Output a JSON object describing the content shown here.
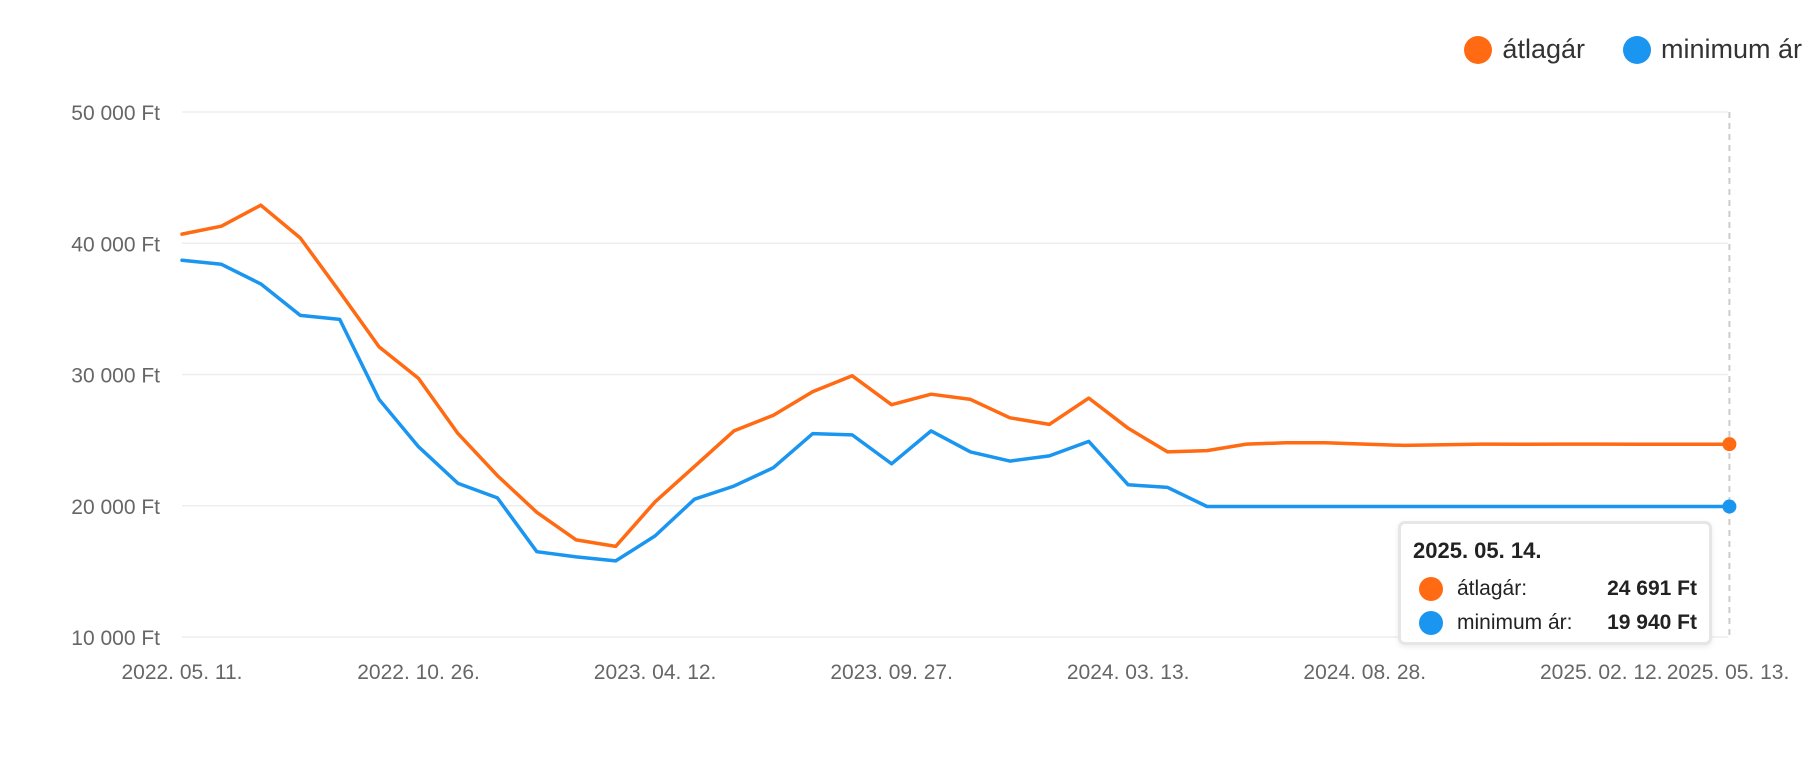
{
  "legend": [
    {
      "label": "átlagár",
      "color": "#ff6a13"
    },
    {
      "label": "minimum ár",
      "color": "#1a96f0"
    }
  ],
  "tooltip": {
    "date": "2025. 05. 14.",
    "rows": [
      {
        "label": "átlagár:",
        "value": "24 691 Ft",
        "color": "#ff6a13"
      },
      {
        "label": "minimum ár:",
        "value": "19 940 Ft",
        "color": "#1a96f0"
      }
    ]
  },
  "chart_data": {
    "type": "line",
    "title": "",
    "xlabel": "",
    "ylabel": "",
    "ylim": [
      10000,
      50000
    ],
    "y_ticks": [
      50000,
      40000,
      30000,
      20000,
      10000
    ],
    "y_tick_labels": [
      "50 000 Ft",
      "40 000 Ft",
      "30 000 Ft",
      "20 000 Ft",
      "10 000 Ft"
    ],
    "x_tick_labels": [
      "2022. 05. 11.",
      "2022. 10. 26.",
      "2023. 04. 12.",
      "2023. 09. 27.",
      "2024. 03. 13.",
      "2024. 08. 28.",
      "2025. 02. 12.",
      "2025. 05. 13."
    ],
    "x_tick_dates": [
      "2022-05-11",
      "2022-10-26",
      "2023-04-12",
      "2023-09-27",
      "2024-03-13",
      "2024-08-28",
      "2025-02-12",
      "2025-05-13"
    ],
    "x": [
      "2022-05-11",
      "2022-06-08",
      "2022-07-06",
      "2022-08-03",
      "2022-08-31",
      "2022-09-28",
      "2022-10-26",
      "2022-11-23",
      "2022-12-21",
      "2023-01-18",
      "2023-02-15",
      "2023-03-15",
      "2023-04-12",
      "2023-05-10",
      "2023-06-07",
      "2023-07-05",
      "2023-08-02",
      "2023-08-30",
      "2023-09-27",
      "2023-10-25",
      "2023-11-22",
      "2023-12-20",
      "2024-01-17",
      "2024-02-14",
      "2024-03-13",
      "2024-04-10",
      "2024-05-08",
      "2024-06-05",
      "2024-07-03",
      "2024-07-31",
      "2024-08-28",
      "2024-09-25",
      "2024-10-23",
      "2024-11-20",
      "2024-12-18",
      "2025-01-15",
      "2025-02-12",
      "2025-03-12",
      "2025-05-14"
    ],
    "series": [
      {
        "name": "átlagár",
        "color": "#ff6a13",
        "values": [
          40700,
          41300,
          42900,
          40400,
          36300,
          32100,
          29700,
          25500,
          22300,
          19500,
          17400,
          16900,
          20300,
          23000,
          25700,
          26900,
          28700,
          29900,
          27700,
          28500,
          28100,
          26700,
          26200,
          28200,
          25900,
          24100,
          24200,
          24700,
          24800,
          24800,
          24700,
          24600,
          24650,
          24700,
          24680,
          24700,
          24700,
          24691,
          24691
        ]
      },
      {
        "name": "minimum ár",
        "color": "#1a96f0",
        "values": [
          38700,
          38400,
          36900,
          34500,
          34200,
          28100,
          24500,
          21700,
          20600,
          16500,
          16100,
          15800,
          17700,
          20500,
          21500,
          22900,
          25500,
          25400,
          23200,
          25700,
          24100,
          23400,
          23800,
          24900,
          21600,
          21400,
          19940,
          19940,
          19940,
          19940,
          19940,
          19940,
          19940,
          19940,
          19940,
          19940,
          19940,
          19940,
          19940
        ]
      }
    ],
    "grid": true,
    "legend_position": "top-right",
    "hover_date": "2025-05-14"
  }
}
